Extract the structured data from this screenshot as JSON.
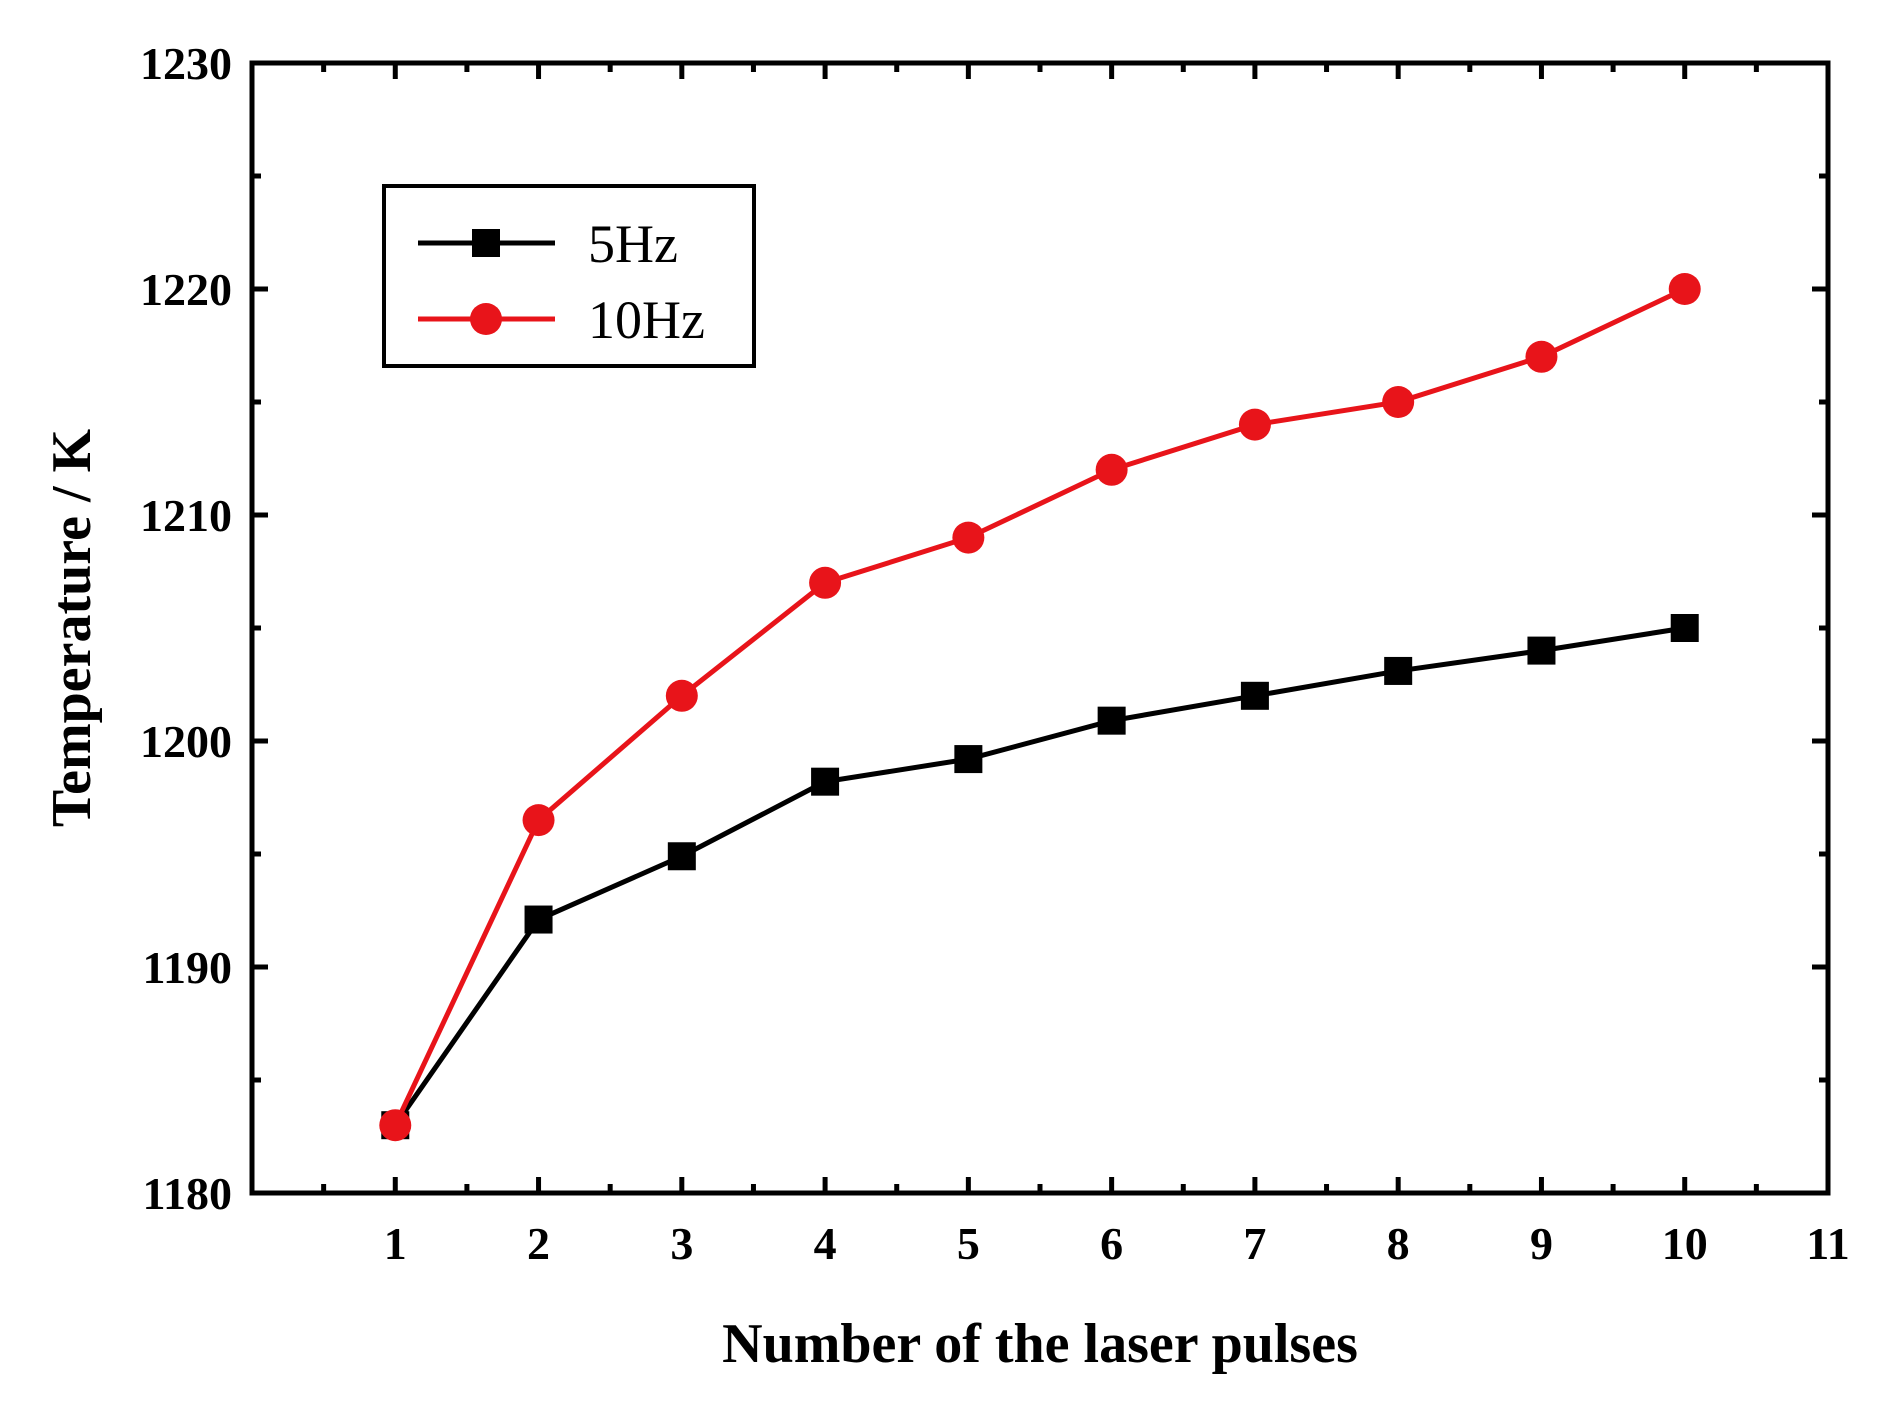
{
  "chart_data": {
    "type": "line",
    "title": "",
    "xlabel": "Number of the laser pulses",
    "ylabel": "Temperature  /  K",
    "xlim": [
      0,
      11
    ],
    "ylim": [
      1180,
      1230
    ],
    "x_ticks": [
      1,
      2,
      3,
      4,
      5,
      6,
      7,
      8,
      9,
      10,
      11
    ],
    "y_ticks": [
      1180,
      1190,
      1200,
      1210,
      1220,
      1230
    ],
    "grid": false,
    "legend_position": "top-left",
    "x": [
      1,
      2,
      3,
      4,
      5,
      6,
      7,
      8,
      9,
      10
    ],
    "series": [
      {
        "name": "5Hz",
        "color": "#000000",
        "marker": "square",
        "values": [
          1183,
          1192.1,
          1194.9,
          1198.2,
          1199.2,
          1200.9,
          1202,
          1203.1,
          1204,
          1205
        ]
      },
      {
        "name": "10Hz",
        "color": "#e8141a",
        "marker": "circle",
        "values": [
          1183,
          1196.5,
          1202,
          1207,
          1209,
          1212,
          1214,
          1215,
          1217,
          1220
        ]
      }
    ]
  }
}
